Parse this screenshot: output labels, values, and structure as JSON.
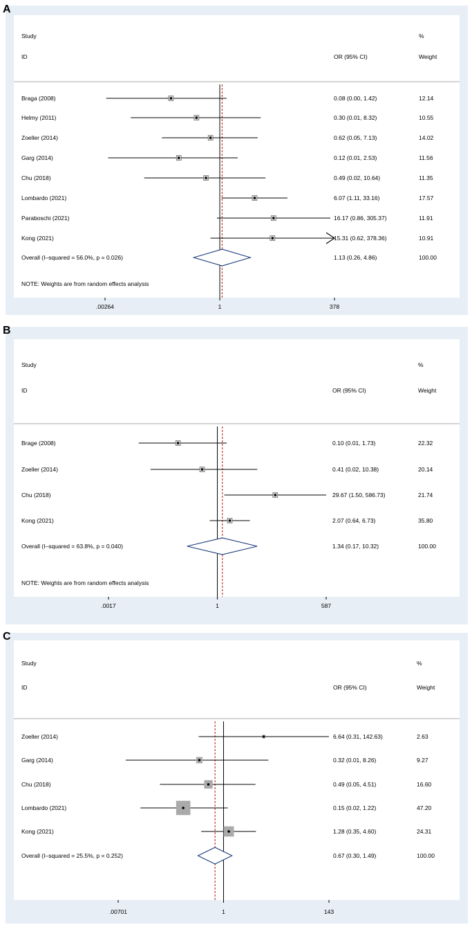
{
  "colors": {
    "outer": "#e7eef6",
    "inner": "#ffffff",
    "divider": "#a8a8a8",
    "axis": "#000000",
    "refline": "#c0392b",
    "diamond": "#1a3a7a",
    "box": "#aaaaaa"
  },
  "chart_data": [
    {
      "panel": "A",
      "type": "forest",
      "header": {
        "study": "Study",
        "id": "ID",
        "or": "OR (95% CI)",
        "pct": "%",
        "weight": "Weight"
      },
      "xscale": "log",
      "xlim": [
        0.00264,
        378
      ],
      "ticks": [
        ".00264",
        "1",
        "378"
      ],
      "tick_values": [
        0.00264,
        1,
        378
      ],
      "null_value": 1,
      "pooled_or": 1.13,
      "show_boxes": false,
      "studies": [
        {
          "name": "Braga (2008)",
          "or": 0.08,
          "lo": 0.0,
          "hi": 1.42,
          "label": "0.08 (0.00, 1.42)",
          "weight": "12.14",
          "w": 12.14,
          "lo_plot": 0.0028,
          "arrow": ""
        },
        {
          "name": "Helmy (2011)",
          "or": 0.3,
          "lo": 0.01,
          "hi": 8.32,
          "label": "0.30 (0.01, 8.32)",
          "weight": "10.55",
          "w": 10.55,
          "arrow": ""
        },
        {
          "name": "Zoeller (2014)",
          "or": 0.62,
          "lo": 0.05,
          "hi": 7.13,
          "label": "0.62 (0.05, 7.13)",
          "weight": "14.02",
          "w": 14.02,
          "arrow": ""
        },
        {
          "name": "Garg (2014)",
          "or": 0.12,
          "lo": 0.01,
          "hi": 2.53,
          "label": "0.12 (0.01, 2.53)",
          "weight": "11.56",
          "w": 11.56,
          "lo_plot": 0.0031,
          "arrow": ""
        },
        {
          "name": "Chu (2018)",
          "or": 0.49,
          "lo": 0.02,
          "hi": 10.64,
          "label": "0.49 (0.02, 10.64)",
          "weight": "11.35",
          "w": 11.35,
          "arrow": ""
        },
        {
          "name": "Lombardo (2021)",
          "or": 6.07,
          "lo": 1.11,
          "hi": 33.16,
          "label": "6.07 (1.11, 33.16)",
          "weight": "17.57",
          "w": 17.57,
          "arrow": ""
        },
        {
          "name": "Paraboschi (2021)",
          "or": 16.17,
          "lo": 0.86,
          "hi": 305.37,
          "label": "16.17 (0.86, 305.37)",
          "weight": "11.91",
          "w": 11.91,
          "arrow": ""
        },
        {
          "name": "Kong (2021)",
          "or": 15.31,
          "lo": 0.62,
          "hi": 378.36,
          "label": "15.31 (0.62, 378.36)",
          "weight": "10.91",
          "w": 10.91,
          "arrow": "right"
        }
      ],
      "overall": {
        "text": "Overall  (I–squared = 56.0%, p = 0.026)",
        "or": 1.13,
        "lo": 0.26,
        "hi": 4.86,
        "label": "1.13 (0.26, 4.86)",
        "weight": "100.00"
      },
      "note": "NOTE: Weights are from random effects analysis"
    },
    {
      "panel": "B",
      "type": "forest",
      "header": {
        "study": "Study",
        "id": "ID",
        "or": "OR (95% CI)",
        "pct": "%",
        "weight": "Weight"
      },
      "xscale": "log",
      "xlim": [
        0.0017,
        587
      ],
      "ticks": [
        ".0017",
        "1",
        "587"
      ],
      "tick_values": [
        0.0017,
        1,
        587
      ],
      "null_value": 1,
      "pooled_or": 1.34,
      "show_boxes": false,
      "studies": [
        {
          "name": "Brage (2008)",
          "or": 0.1,
          "lo": 0.01,
          "hi": 1.73,
          "label": "0.10 (0.01, 1.73)",
          "weight": "22.32",
          "w": 22.32,
          "arrow": ""
        },
        {
          "name": "Zoeller (2014)",
          "or": 0.41,
          "lo": 0.02,
          "hi": 10.38,
          "label": "0.41 (0.02, 10.38)",
          "weight": "20.14",
          "w": 20.14,
          "arrow": ""
        },
        {
          "name": "Chu (2018)",
          "or": 29.67,
          "lo": 1.5,
          "hi": 586.73,
          "label": "29.67 (1.50, 586.73)",
          "weight": "21.74",
          "w": 21.74,
          "arrow": ""
        },
        {
          "name": "Kong (2021)",
          "or": 2.07,
          "lo": 0.64,
          "hi": 6.73,
          "label": "2.07 (0.64, 6.73)",
          "weight": "35.80",
          "w": 35.8,
          "arrow": ""
        }
      ],
      "overall": {
        "text": "Overall  (I–squared = 63.8%, p = 0.040)",
        "or": 1.34,
        "lo": 0.17,
        "hi": 10.32,
        "label": "1.34 (0.17, 10.32)",
        "weight": "100.00"
      },
      "note": "NOTE: Weights are from random effects analysis"
    },
    {
      "panel": "C",
      "type": "forest",
      "header": {
        "study": "Study",
        "id": "ID",
        "or": "OR (95% CI)",
        "pct": "%",
        "weight": "Weight"
      },
      "xscale": "log",
      "xlim": [
        0.00701,
        143
      ],
      "ticks": [
        ".00701",
        "1",
        "143"
      ],
      "tick_values": [
        0.00701,
        1,
        143
      ],
      "null_value": 1,
      "pooled_or": 0.67,
      "show_boxes": true,
      "studies": [
        {
          "name": "Zoeller (2014)",
          "or": 6.64,
          "lo": 0.31,
          "hi": 142.63,
          "label": "6.64 (0.31, 142.63)",
          "weight": "2.63",
          "w": 2.63,
          "arrow": ""
        },
        {
          "name": "Garg (2014)",
          "or": 0.32,
          "lo": 0.01,
          "hi": 8.26,
          "label": "0.32 (0.01, 8.26)",
          "weight": "9.27",
          "w": 9.27,
          "arrow": ""
        },
        {
          "name": "Chu (2018)",
          "or": 0.49,
          "lo": 0.05,
          "hi": 4.51,
          "label": "0.49 (0.05, 4.51)",
          "weight": "16.60",
          "w": 16.6,
          "arrow": ""
        },
        {
          "name": "Lombardo (2021)",
          "or": 0.15,
          "lo": 0.02,
          "hi": 1.22,
          "label": "0.15 (0.02, 1.22)",
          "weight": "47.20",
          "w": 47.2,
          "arrow": ""
        },
        {
          "name": "Kong (2021)",
          "or": 1.28,
          "lo": 0.35,
          "hi": 4.6,
          "label": "1.28 (0.35, 4.60)",
          "weight": "24.31",
          "w": 24.31,
          "arrow": ""
        }
      ],
      "overall": {
        "text": "Overall  (I–squared = 25.5%, p = 0.252)",
        "or": 0.67,
        "lo": 0.3,
        "hi": 1.49,
        "label": "0.67 (0.30, 1.49)",
        "weight": "100.00"
      },
      "note": ""
    }
  ]
}
